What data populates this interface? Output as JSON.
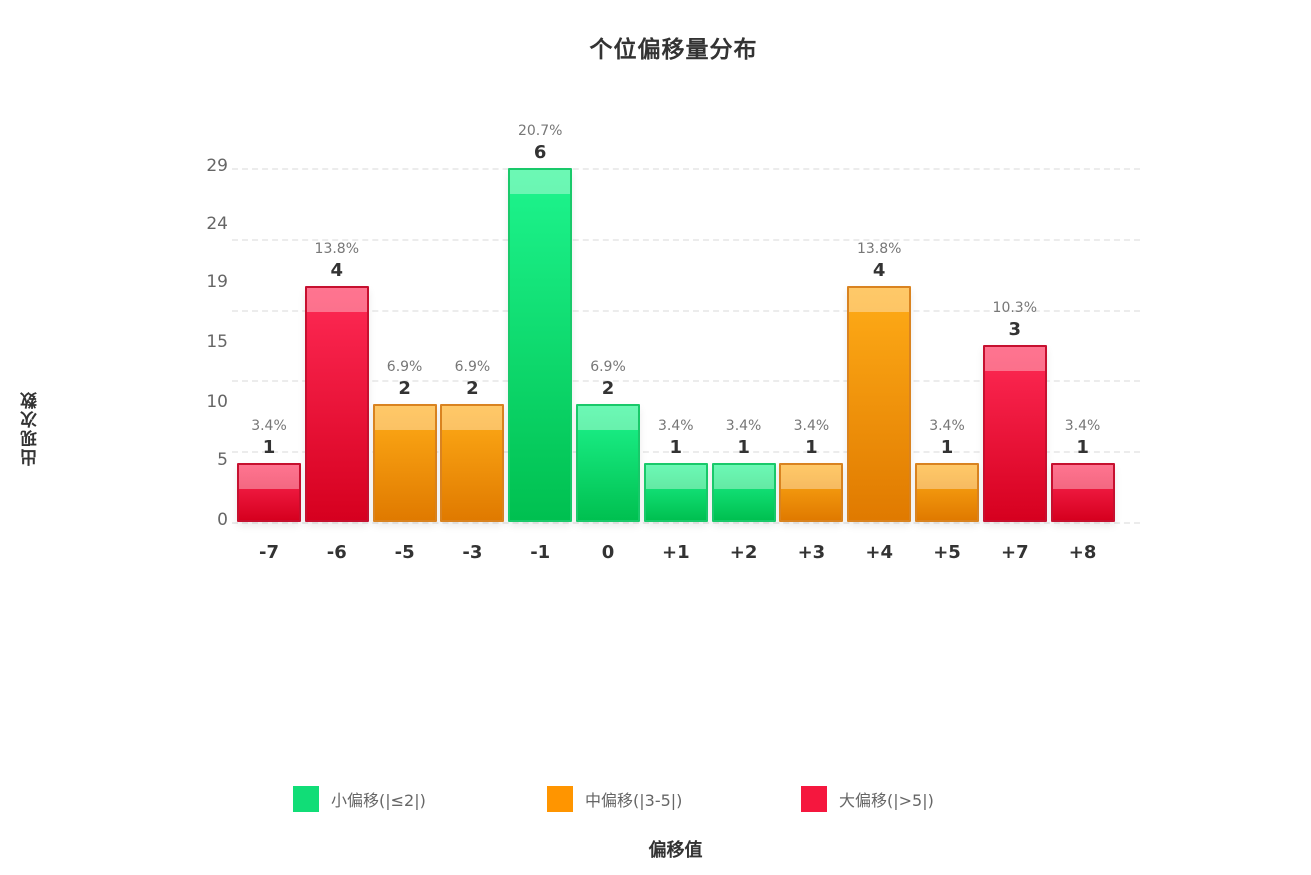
{
  "chart_data": {
    "type": "bar",
    "title": "个位偏移量分布",
    "xlabel": "偏移值",
    "ylabel": "出现次数",
    "yticks": [
      "0",
      "5",
      "10",
      "15",
      "19",
      "24",
      "29"
    ],
    "categories": [
      "-7",
      "-6",
      "-5",
      "-3",
      "-1",
      "0",
      "+1",
      "+2",
      "+3",
      "+4",
      "+5",
      "+7",
      "+8"
    ],
    "values": [
      1,
      4,
      2,
      2,
      6,
      2,
      1,
      1,
      1,
      4,
      1,
      3,
      1
    ],
    "percentages": [
      "3.4%",
      "13.8%",
      "6.9%",
      "6.9%",
      "20.7%",
      "6.9%",
      "3.4%",
      "3.4%",
      "3.4%",
      "13.8%",
      "3.4%",
      "10.3%",
      "3.4%"
    ],
    "groups": [
      "large",
      "large",
      "medium",
      "medium",
      "small",
      "small",
      "small",
      "small",
      "medium",
      "medium",
      "medium",
      "large",
      "large"
    ],
    "grid": true,
    "legend_position": "bottom",
    "legend": [
      {
        "key": "small",
        "label": "小偏移(|≤2|)",
        "color": "#11dd77"
      },
      {
        "key": "medium",
        "label": "中偏移(|3-5|)",
        "color": "#ff9500"
      },
      {
        "key": "large",
        "label": "大偏移(|>5|)",
        "color": "#f5173e"
      }
    ]
  }
}
